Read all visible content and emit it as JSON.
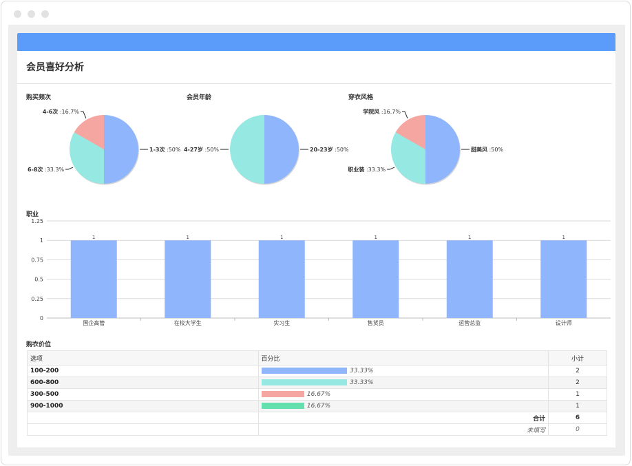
{
  "page": {
    "title": "会员喜好分析"
  },
  "pies": [
    {
      "label": "购买频次",
      "slices": [
        {
          "name": "1-3次",
          "pct": "50%",
          "value": 50,
          "color": "#8fb6fc"
        },
        {
          "name": "6-8次",
          "pct": "33.3%",
          "value": 33.3,
          "color": "#96e8e3"
        },
        {
          "name": "4-6次",
          "pct": "16.7%",
          "value": 16.7,
          "color": "#f5a6a0"
        }
      ]
    },
    {
      "label": "会员年龄",
      "slices": [
        {
          "name": "20-23岁",
          "pct": "50%",
          "value": 50,
          "color": "#8fb6fc"
        },
        {
          "name": "4-27岁",
          "pct": "50%",
          "value": 50,
          "color": "#96e8e3"
        }
      ]
    },
    {
      "label": "穿衣风格",
      "slices": [
        {
          "name": "甜美风",
          "pct": "50%",
          "value": 50,
          "color": "#8fb6fc"
        },
        {
          "name": "职业装",
          "pct": "33.3%",
          "value": 33.3,
          "color": "#96e8e3"
        },
        {
          "name": "学院风",
          "pct": "16.7%",
          "value": 16.7,
          "color": "#f5a6a0"
        }
      ]
    }
  ],
  "chart_data": {
    "type": "bar",
    "title": "职业",
    "categories": [
      "国企高管",
      "在校大学生",
      "实习生",
      "售货员",
      "运营总监",
      "设计师"
    ],
    "values": [
      1,
      1,
      1,
      1,
      1,
      1
    ],
    "ylim": [
      0,
      1.25
    ],
    "yticks": [
      "0",
      "0.25",
      "0.5",
      "0.75",
      "1",
      "1.25"
    ],
    "bar_color": "#8fb6fc",
    "grid": true
  },
  "price": {
    "label": "购衣价位",
    "headers": {
      "option": "选项",
      "percent": "百分比",
      "subtotal": "小计"
    },
    "rows": [
      {
        "option": "100-200",
        "pct": "33.33%",
        "value": 33.33,
        "count": "2",
        "color": "#8fb6fc"
      },
      {
        "option": "600-800",
        "pct": "33.33%",
        "value": 33.33,
        "count": "2",
        "color": "#96e8e3"
      },
      {
        "option": "300-500",
        "pct": "16.67%",
        "value": 16.67,
        "count": "1",
        "color": "#f5a6a0"
      },
      {
        "option": "900-1000",
        "pct": "16.67%",
        "value": 16.67,
        "count": "1",
        "color": "#63e0ae"
      }
    ],
    "total_label": "合计",
    "total": "6",
    "unfilled_label": "未填写",
    "unfilled": "0"
  }
}
